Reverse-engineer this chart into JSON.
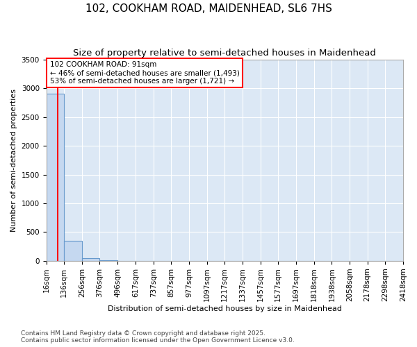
{
  "title": "102, COOKHAM ROAD, MAIDENHEAD, SL6 7HS",
  "subtitle": "Size of property relative to semi-detached houses in Maidenhead",
  "xlabel": "Distribution of semi-detached houses by size in Maidenhead",
  "ylabel": "Number of semi-detached properties",
  "bin_edges": [
    16,
    136,
    256,
    376,
    496,
    617,
    737,
    857,
    977,
    1097,
    1217,
    1337,
    1457,
    1577,
    1697,
    1818,
    1938,
    2058,
    2178,
    2298,
    2418
  ],
  "bin_counts": [
    2900,
    350,
    50,
    10,
    5,
    3,
    2,
    1,
    1,
    1,
    1,
    1,
    1,
    0,
    0,
    0,
    0,
    0,
    0,
    0
  ],
  "property_size": 91,
  "bar_color": "#c5d8f0",
  "bar_edge_color": "#6699cc",
  "vline_color": "red",
  "annotation_text": "102 COOKHAM ROAD: 91sqm\n← 46% of semi-detached houses are smaller (1,493)\n53% of semi-detached houses are larger (1,721) →",
  "annotation_box_color": "white",
  "annotation_box_edge_color": "red",
  "ylim": [
    0,
    3500
  ],
  "yticks": [
    0,
    500,
    1000,
    1500,
    2000,
    2500,
    3000,
    3500
  ],
  "footer": "Contains HM Land Registry data © Crown copyright and database right 2025.\nContains public sector information licensed under the Open Government Licence v3.0.",
  "title_fontsize": 11,
  "subtitle_fontsize": 9.5,
  "axis_label_fontsize": 8,
  "tick_fontsize": 7.5,
  "annotation_fontsize": 7.5,
  "footer_fontsize": 6.5
}
